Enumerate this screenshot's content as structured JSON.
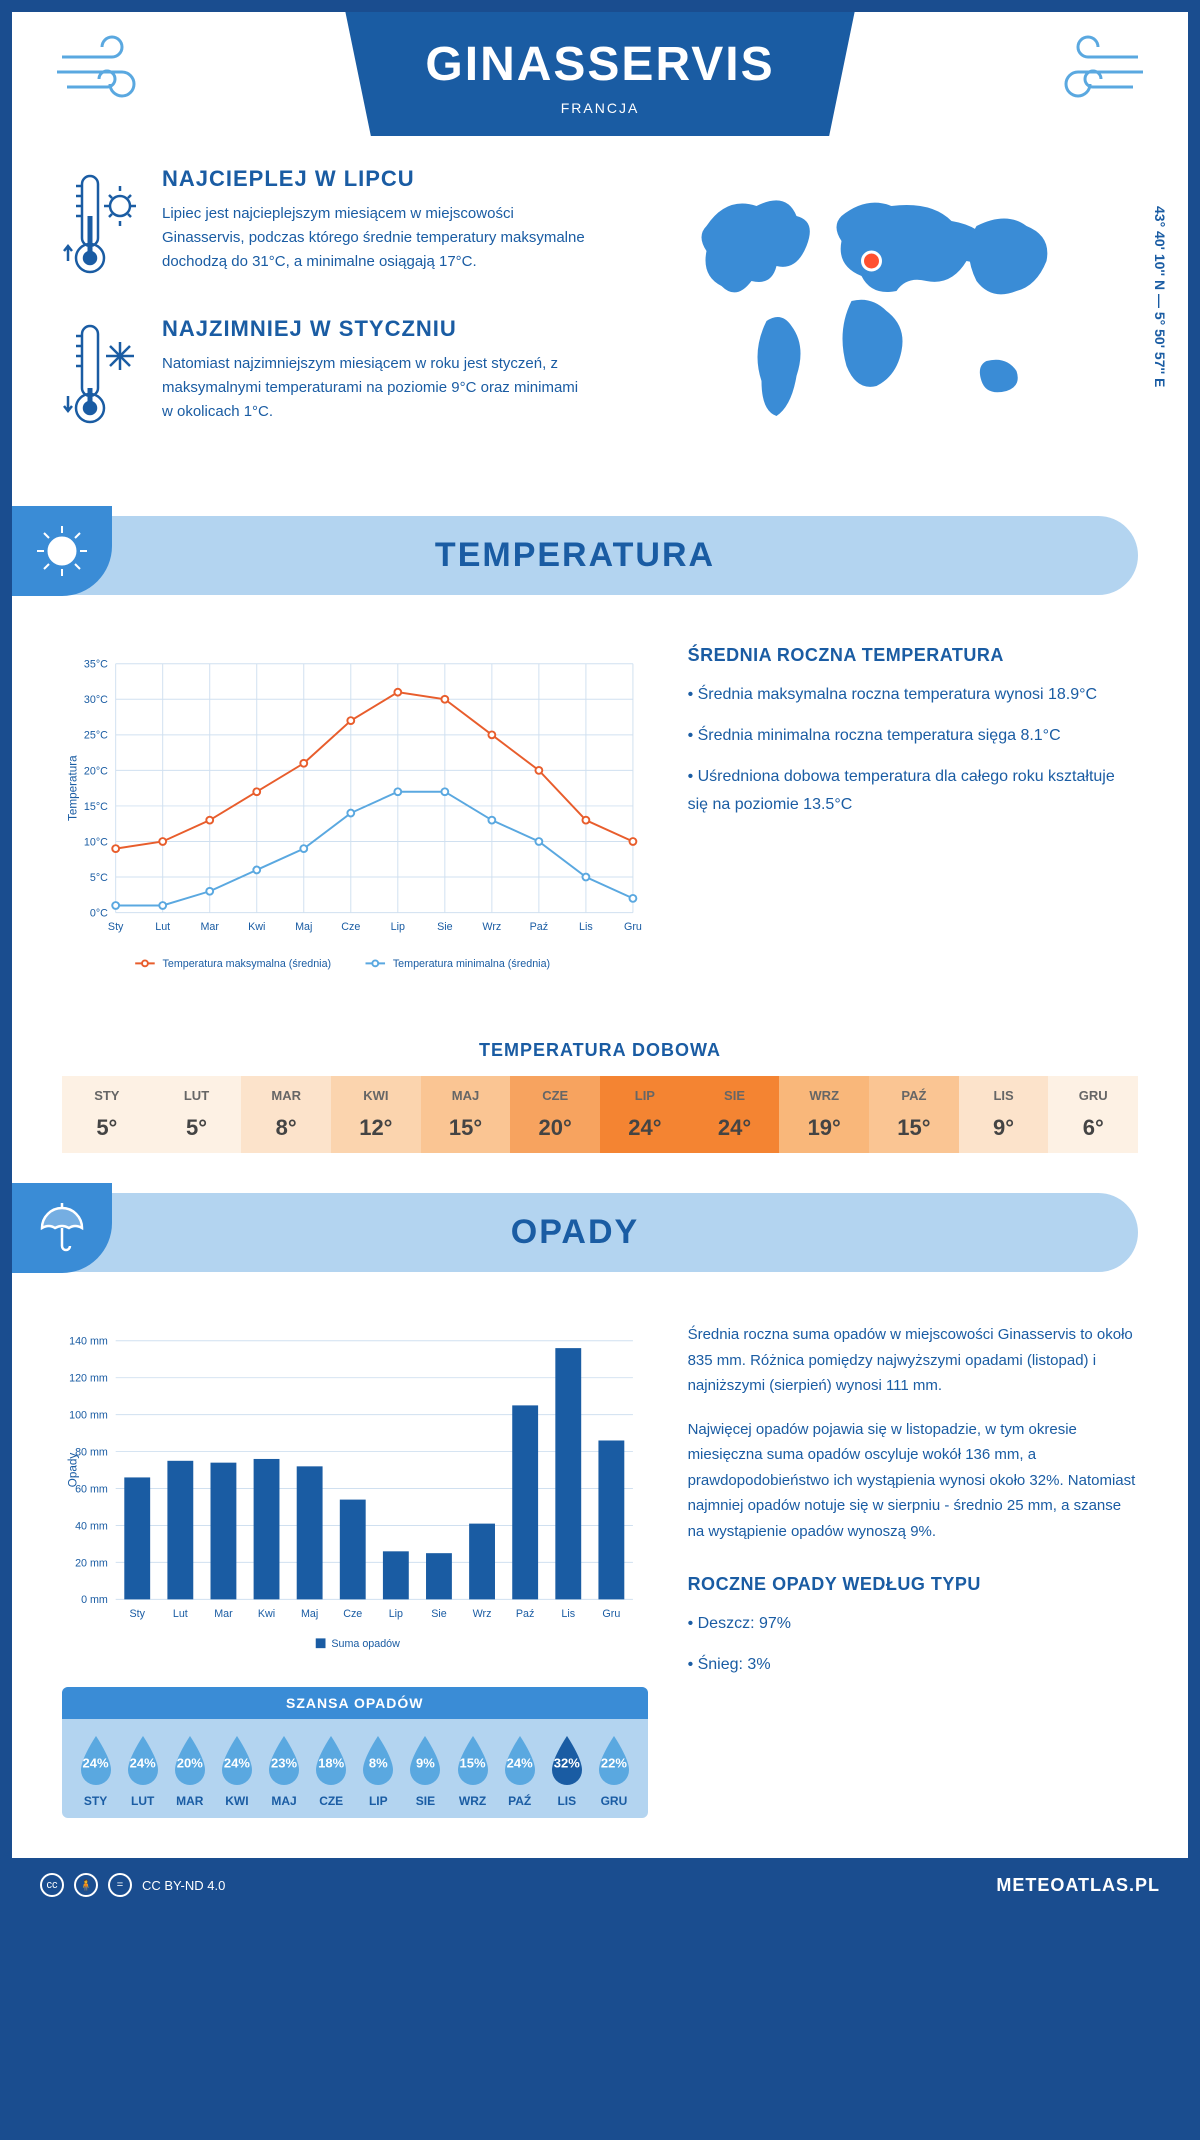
{
  "header": {
    "city": "GINASSERVIS",
    "country": "FRANCJA"
  },
  "coords": "43° 40' 10'' N — 5° 50' 57'' E",
  "facts": {
    "hot": {
      "title": "NAJCIEPLEJ W LIPCU",
      "text": "Lipiec jest najcieplejszym miesiącem w miejscowości Ginasservis, podczas którego średnie temperatury maksymalne dochodzą do 31°C, a minimalne osiągają 17°C."
    },
    "cold": {
      "title": "NAJZIMNIEJ W STYCZNIU",
      "text": "Natomiast najzimniejszym miesiącem w roku jest styczeń, z maksymalnymi temperaturami na poziomie 9°C oraz minimami w okolicach 1°C."
    }
  },
  "temperature": {
    "section_title": "TEMPERATURA",
    "chart": {
      "type": "line",
      "months": [
        "Sty",
        "Lut",
        "Mar",
        "Kwi",
        "Maj",
        "Cze",
        "Lip",
        "Sie",
        "Wrz",
        "Paź",
        "Lis",
        "Gru"
      ],
      "series": [
        {
          "name": "Temperatura maksymalna (średnia)",
          "color": "#e85d2c",
          "values": [
            9,
            10,
            13,
            17,
            21,
            27,
            31,
            30,
            25,
            20,
            13,
            10
          ]
        },
        {
          "name": "Temperatura minimalna (średnia)",
          "color": "#5aa8e0",
          "values": [
            1,
            1,
            3,
            6,
            9,
            14,
            17,
            17,
            13,
            10,
            5,
            2
          ]
        }
      ],
      "ylim": [
        0,
        35
      ],
      "ytick_step": 5,
      "y_unit": "°C",
      "ylabel": "Temperatura",
      "grid_color": "#d0e0f0",
      "background": "#ffffff"
    },
    "annual": {
      "title": "ŚREDNIA ROCZNA TEMPERATURA",
      "bullets": [
        "• Średnia maksymalna roczna temperatura wynosi 18.9°C",
        "• Średnia minimalna roczna temperatura sięga 8.1°C",
        "• Uśredniona dobowa temperatura dla całego roku kształtuje się na poziomie 13.5°C"
      ]
    },
    "daily": {
      "title": "TEMPERATURA DOBOWA",
      "months": [
        "STY",
        "LUT",
        "MAR",
        "KWI",
        "MAJ",
        "CZE",
        "LIP",
        "SIE",
        "WRZ",
        "PAŹ",
        "LIS",
        "GRU"
      ],
      "values": [
        "5°",
        "5°",
        "8°",
        "12°",
        "15°",
        "20°",
        "24°",
        "24°",
        "19°",
        "15°",
        "9°",
        "6°"
      ],
      "colors": [
        "#fdf1e4",
        "#fdf1e4",
        "#fce3cb",
        "#fbd4ae",
        "#fac593",
        "#f7a35f",
        "#f48432",
        "#f48432",
        "#f9b77a",
        "#fac593",
        "#fce3cb",
        "#fdf1e4"
      ]
    }
  },
  "precipitation": {
    "section_title": "OPADY",
    "chart": {
      "type": "bar",
      "months": [
        "Sty",
        "Lut",
        "Mar",
        "Kwi",
        "Maj",
        "Cze",
        "Lip",
        "Sie",
        "Wrz",
        "Paź",
        "Lis",
        "Gru"
      ],
      "values": [
        66,
        75,
        74,
        76,
        72,
        54,
        26,
        25,
        41,
        105,
        136,
        86
      ],
      "bar_color": "#1a5ca3",
      "ylim": [
        0,
        140
      ],
      "ytick_step": 20,
      "y_unit": " mm",
      "ylabel": "Opady",
      "legend": "Suma opadów",
      "grid_color": "#d0e0f0"
    },
    "text1": "Średnia roczna suma opadów w miejscowości Ginasservis to około 835 mm. Różnica pomiędzy najwyższymi opadami (listopad) i najniższymi (sierpień) wynosi 111 mm.",
    "text2": "Najwięcej opadów pojawia się w listopadzie, w tym okresie miesięczna suma opadów oscyluje wokół 136 mm, a prawdopodobieństwo ich wystąpienia wynosi około 32%. Natomiast najmniej opadów notuje się w sierpniu - średnio 25 mm, a szanse na wystąpienie opadów wynoszą 9%.",
    "chance": {
      "title": "SZANSA OPADÓW",
      "months": [
        "STY",
        "LUT",
        "MAR",
        "KWI",
        "MAJ",
        "CZE",
        "LIP",
        "SIE",
        "WRZ",
        "PAŹ",
        "LIS",
        "GRU"
      ],
      "values": [
        "24%",
        "24%",
        "20%",
        "24%",
        "23%",
        "18%",
        "8%",
        "9%",
        "15%",
        "24%",
        "32%",
        "22%"
      ],
      "highlight_index": 10,
      "drop_color": "#5aa8e0",
      "drop_highlight": "#1a5ca3"
    },
    "by_type": {
      "title": "ROCZNE OPADY WEDŁUG TYPU",
      "bullets": [
        "• Deszcz: 97%",
        "• Śnieg: 3%"
      ]
    }
  },
  "footer": {
    "license": "CC BY-ND 4.0",
    "brand": "METEOATLAS.PL"
  }
}
